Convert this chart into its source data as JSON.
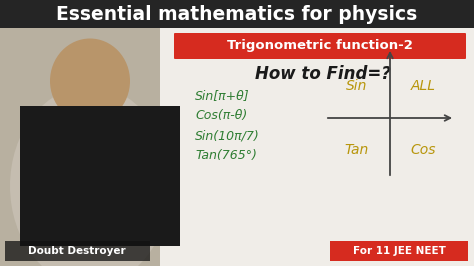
{
  "title": "Essential mathematics for physics",
  "subtitle": "Trigonometric function-2",
  "subtitle_bg": "#d62b1f",
  "subtitle_color": "#ffffff",
  "howto": "How to Find=?",
  "formulas": [
    "Sin[π+θ]",
    "Cos(π-θ)",
    "Sin(10π/7)",
    "Tan(765°)"
  ],
  "formula_color": "#2e7d32",
  "quadrant_labels": [
    "Sin",
    "ALL",
    "Tan",
    "Cos"
  ],
  "quadrant_color": "#b8960c",
  "title_bg": "#252525",
  "title_color": "#ffffff",
  "bg_color": "#d8d0c0",
  "person_bg": "#b0a890",
  "doubt_destroyer": "Doubt Destroyer",
  "for_text": "For 11 JEE NEET",
  "for_bg": "#d62b1f",
  "for_color": "#ffffff",
  "howto_color": "#1a1a1a",
  "cross_color": "#444444"
}
